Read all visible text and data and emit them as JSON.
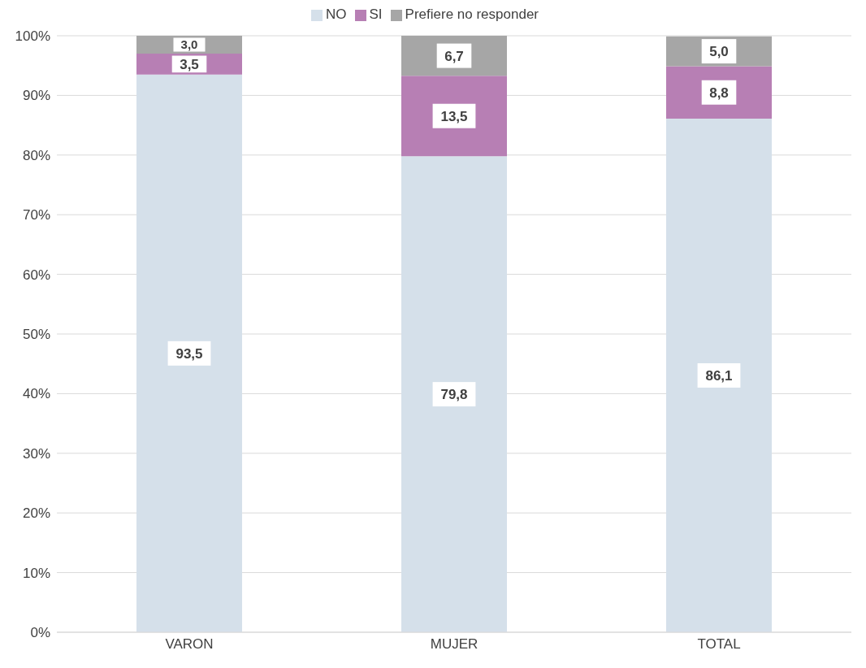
{
  "chart_data": {
    "type": "bar",
    "stacked": true,
    "categories": [
      "VARON",
      "MUJER",
      "TOTAL"
    ],
    "series": [
      {
        "name": "NO",
        "color": "#d5e0ea",
        "values": [
          93.5,
          79.8,
          86.1
        ],
        "value_labels": [
          "93,5",
          "79,8",
          "86,1"
        ]
      },
      {
        "name": "SI",
        "color": "#b77fb4",
        "values": [
          3.5,
          13.5,
          8.8
        ],
        "value_labels": [
          "3,5",
          "13,5",
          "8,8"
        ]
      },
      {
        "name": "Prefiere no responder",
        "color": "#a6a6a6",
        "values": [
          3.0,
          6.7,
          5.0
        ],
        "value_labels": [
          "3,0",
          "6,7",
          "5,0"
        ]
      }
    ],
    "ylim": [
      0,
      100
    ],
    "yticks": [
      {
        "value": 0,
        "label": "0%"
      },
      {
        "value": 10,
        "label": "10%"
      },
      {
        "value": 20,
        "label": "20%"
      },
      {
        "value": 30,
        "label": "30%"
      },
      {
        "value": 40,
        "label": "40%"
      },
      {
        "value": 50,
        "label": "50%"
      },
      {
        "value": 60,
        "label": "60%"
      },
      {
        "value": 70,
        "label": "70%"
      },
      {
        "value": 80,
        "label": "80%"
      },
      {
        "value": 90,
        "label": "90%"
      },
      {
        "value": 100,
        "label": "100%"
      }
    ],
    "grid": "y",
    "legend": "top"
  }
}
